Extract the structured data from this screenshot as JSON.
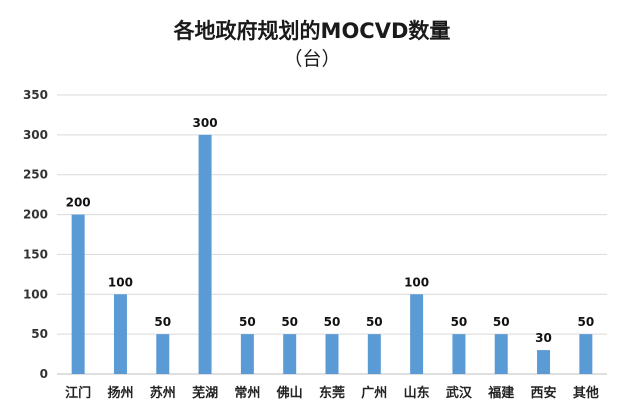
{
  "chart_data": {
    "type": "bar",
    "title": "各地政府规划的MOCVD数量",
    "subtitle": "（台）",
    "categories": [
      "江门",
      "扬州",
      "苏州",
      "芜湖",
      "常州",
      "佛山",
      "东莞",
      "广州",
      "山东",
      "武汉",
      "福建",
      "西安",
      "其他"
    ],
    "values": [
      200,
      100,
      50,
      300,
      50,
      50,
      50,
      50,
      100,
      50,
      50,
      30,
      50
    ],
    "data_labels": [
      "200",
      "100",
      "50",
      "300",
      "50",
      "50",
      "50",
      "50",
      "100",
      "50",
      "50",
      "30",
      "50"
    ],
    "yticks": [
      "0",
      "50",
      "100",
      "150",
      "200",
      "250",
      "300",
      "350"
    ],
    "ylim": [
      0,
      350
    ],
    "grid": true,
    "legend": "none",
    "bar_color": "#5b9bd5",
    "grid_color": "#d9d9d9"
  }
}
